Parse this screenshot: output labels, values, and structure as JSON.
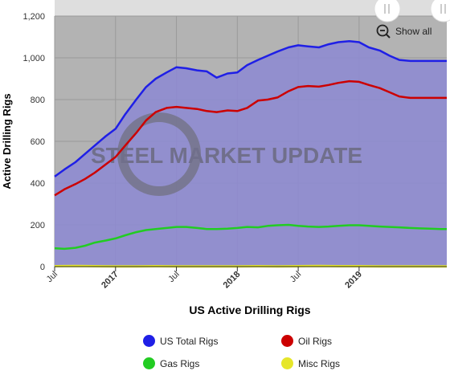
{
  "chart_data": {
    "type": "area",
    "xlabel": "US Active Drilling Rigs",
    "ylabel": "Active Drilling Rigs",
    "ylim": [
      0,
      1200
    ],
    "yticks": [
      "0",
      "200",
      "400",
      "600",
      "800",
      "1,000",
      "1,200"
    ],
    "xticks": [
      {
        "label": "Jul",
        "year": false,
        "x": 2016.5
      },
      {
        "label": "2017",
        "year": true,
        "x": 2017.0
      },
      {
        "label": "Jul",
        "year": false,
        "x": 2017.5
      },
      {
        "label": "2018",
        "year": true,
        "x": 2018.0
      },
      {
        "label": "Jul",
        "year": false,
        "x": 2018.5
      },
      {
        "label": "2019",
        "year": true,
        "x": 2019.0
      }
    ],
    "xlim": [
      2016.5,
      2019.72
    ],
    "grid": true,
    "legend_position": "bottom",
    "watermark": "STEEL MARKET UPDATE",
    "series": [
      {
        "name": "US Total Rigs",
        "color": "#1f1fe6",
        "x": [
          2016.5,
          2016.58,
          2016.67,
          2016.75,
          2016.83,
          2016.92,
          2017.0,
          2017.08,
          2017.17,
          2017.25,
          2017.33,
          2017.42,
          2017.5,
          2017.58,
          2017.67,
          2017.75,
          2017.83,
          2017.92,
          2018.0,
          2018.08,
          2018.17,
          2018.25,
          2018.33,
          2018.42,
          2018.5,
          2018.58,
          2018.67,
          2018.75,
          2018.83,
          2018.92,
          2019.0,
          2019.08,
          2019.17,
          2019.25,
          2019.33,
          2019.42,
          2019.5,
          2019.58,
          2019.67,
          2019.72
        ],
        "y": [
          431,
          465,
          500,
          540,
          580,
          625,
          660,
          730,
          800,
          860,
          900,
          930,
          955,
          950,
          940,
          935,
          905,
          925,
          930,
          965,
          990,
          1010,
          1030,
          1050,
          1060,
          1055,
          1050,
          1065,
          1075,
          1080,
          1075,
          1050,
          1035,
          1010,
          990,
          985,
          985,
          985,
          985,
          985
        ]
      },
      {
        "name": "Oil Rigs",
        "color": "#cc0000",
        "x": [
          2016.5,
          2016.58,
          2016.67,
          2016.75,
          2016.83,
          2016.92,
          2017.0,
          2017.08,
          2017.17,
          2017.25,
          2017.33,
          2017.42,
          2017.5,
          2017.58,
          2017.67,
          2017.75,
          2017.83,
          2017.92,
          2018.0,
          2018.08,
          2018.17,
          2018.25,
          2018.33,
          2018.42,
          2018.5,
          2018.58,
          2018.67,
          2018.75,
          2018.83,
          2018.92,
          2019.0,
          2019.08,
          2019.17,
          2019.25,
          2019.33,
          2019.42,
          2019.5,
          2019.58,
          2019.67,
          2019.72
        ],
        "y": [
          341,
          370,
          395,
          420,
          450,
          490,
          525,
          580,
          640,
          700,
          740,
          760,
          765,
          760,
          755,
          745,
          740,
          748,
          745,
          760,
          795,
          800,
          810,
          840,
          860,
          865,
          862,
          870,
          880,
          888,
          885,
          870,
          855,
          835,
          815,
          808,
          808,
          808,
          808,
          808
        ]
      },
      {
        "name": "Gas Rigs",
        "color": "#22cc22",
        "x": [
          2016.5,
          2016.58,
          2016.67,
          2016.75,
          2016.83,
          2016.92,
          2017.0,
          2017.08,
          2017.17,
          2017.25,
          2017.33,
          2017.42,
          2017.5,
          2017.58,
          2017.67,
          2017.75,
          2017.83,
          2017.92,
          2018.0,
          2018.08,
          2018.17,
          2018.25,
          2018.33,
          2018.42,
          2018.5,
          2018.58,
          2018.67,
          2018.75,
          2018.83,
          2018.92,
          2019.0,
          2019.08,
          2019.17,
          2019.25,
          2019.33,
          2019.42,
          2019.5,
          2019.58,
          2019.67,
          2019.72
        ],
        "y": [
          88,
          85,
          90,
          100,
          115,
          125,
          135,
          150,
          165,
          175,
          180,
          185,
          190,
          190,
          185,
          180,
          180,
          182,
          185,
          190,
          188,
          195,
          198,
          200,
          195,
          192,
          190,
          192,
          195,
          198,
          198,
          195,
          192,
          190,
          188,
          185,
          183,
          182,
          180,
          180
        ]
      },
      {
        "name": "Misc Rigs",
        "color": "#e6e62a",
        "x": [
          2016.5,
          2016.67,
          2016.83,
          2017.0,
          2017.17,
          2017.33,
          2017.5,
          2017.67,
          2017.83,
          2018.0,
          2018.17,
          2018.33,
          2018.5,
          2018.67,
          2018.83,
          2019.0,
          2019.17,
          2019.33,
          2019.5,
          2019.72
        ],
        "y": [
          2,
          3,
          2,
          1,
          1,
          2,
          1,
          1,
          1,
          1,
          2,
          1,
          2,
          3,
          2,
          2,
          1,
          1,
          1,
          1
        ]
      }
    ]
  },
  "toolbar": {
    "show_all_label": "Show all"
  }
}
